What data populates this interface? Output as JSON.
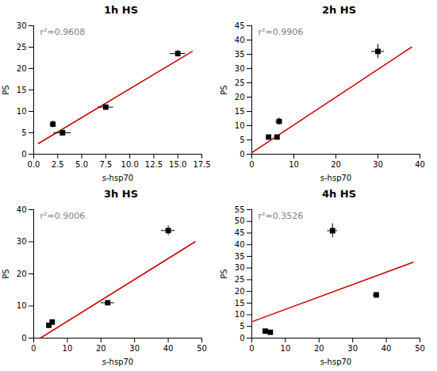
{
  "chart_data": [
    {
      "type": "scatter",
      "title": "1h HS",
      "xlabel": "s-hsp70",
      "ylabel": "PS",
      "xlim": [
        0,
        17.5
      ],
      "ylim": [
        0,
        30
      ],
      "xticks": [
        {
          "value": 0,
          "label": "0.0"
        },
        2.5,
        {
          "value": 5,
          "label": "5.0"
        },
        7.5,
        {
          "value": 10,
          "label": "10.0"
        },
        12.5,
        {
          "value": 15,
          "label": "15.0"
        },
        17.5
      ],
      "yticks": [
        0,
        5,
        10,
        15,
        20,
        25,
        30
      ],
      "series": [
        {
          "type": "line",
          "color": "#cc0000",
          "x": [
            0.5,
            16.5
          ],
          "values": [
            2.5,
            24.0
          ]
        },
        {
          "type": "scatter",
          "color": "black",
          "marker": "square",
          "x": [
            2.0,
            3.0,
            7.5,
            15.0
          ],
          "values": [
            7.0,
            5.0,
            11.0,
            23.5
          ],
          "xerr": [
            0.3,
            0.9,
            0.8,
            0.8
          ],
          "yerr": [
            0.8,
            0.3,
            0.5,
            0.8
          ]
        }
      ],
      "annotations": [
        {
          "text": "r²=0.9608",
          "color": "#808080"
        }
      ]
    },
    {
      "type": "scatter",
      "title": "2h HS",
      "xlabel": "s-hsp70",
      "ylabel": "PS",
      "xlim": [
        0,
        40
      ],
      "ylim": [
        0,
        45
      ],
      "xticks": [
        0,
        10,
        20,
        30,
        40
      ],
      "yticks": [
        0,
        5,
        10,
        15,
        20,
        25,
        30,
        35,
        40,
        45
      ],
      "series": [
        {
          "type": "line",
          "color": "#cc0000",
          "x": [
            0,
            38
          ],
          "values": [
            0.5,
            37.5
          ]
        },
        {
          "type": "scatter",
          "color": "black",
          "marker": "square",
          "x": [
            4.0,
            6.0,
            6.5,
            30.0
          ],
          "values": [
            6.0,
            6.0,
            11.5,
            36.0
          ],
          "xerr": [
            0.5,
            0.6,
            0.8,
            1.5
          ],
          "yerr": [
            0.4,
            0.4,
            1.2,
            2.5
          ]
        }
      ],
      "annotations": [
        {
          "text": "r²=0.9906",
          "color": "#808080"
        }
      ]
    },
    {
      "type": "scatter",
      "title": "3h HS",
      "xlabel": "s-hsp70",
      "ylabel": "PS",
      "xlim": [
        0,
        50
      ],
      "ylim": [
        0,
        40
      ],
      "xticks": [
        0,
        10,
        20,
        30,
        40,
        50
      ],
      "yticks": [
        0,
        10,
        20,
        30,
        40
      ],
      "series": [
        {
          "type": "line",
          "color": "#cc0000",
          "x": [
            2.0,
            48.0
          ],
          "values": [
            0.0,
            30.0
          ]
        },
        {
          "type": "scatter",
          "color": "black",
          "marker": "square",
          "x": [
            4.5,
            5.5,
            22.0,
            40.0
          ],
          "values": [
            4.0,
            5.0,
            11.0,
            33.5
          ],
          "xerr": [
            0.4,
            0.5,
            2.0,
            2.0
          ],
          "yerr": [
            0.4,
            0.4,
            0.5,
            1.5
          ]
        }
      ],
      "annotations": [
        {
          "text": "r²=0.9006",
          "color": "#808080"
        }
      ]
    },
    {
      "type": "scatter",
      "title": "4h HS",
      "xlabel": "s-hsp70",
      "ylabel": "PS",
      "xlim": [
        0,
        50
      ],
      "ylim": [
        0,
        55
      ],
      "xticks": [
        0,
        10,
        20,
        30,
        40,
        50
      ],
      "yticks": [
        0,
        5,
        10,
        15,
        20,
        25,
        30,
        35,
        40,
        45,
        50,
        55
      ],
      "series": [
        {
          "type": "line",
          "color": "#cc0000",
          "x": [
            0,
            48
          ],
          "values": [
            7.0,
            32.5
          ]
        },
        {
          "type": "scatter",
          "color": "black",
          "marker": "square",
          "x": [
            4.0,
            5.5,
            24.0,
            37.0
          ],
          "values": [
            3.0,
            2.5,
            46.0,
            18.5
          ],
          "xerr": [
            0.5,
            0.6,
            1.5,
            1.0
          ],
          "yerr": [
            0.5,
            0.3,
            3.0,
            0.5
          ]
        }
      ],
      "annotations": [
        {
          "text": "r²=0.3526",
          "color": "#808080"
        }
      ]
    }
  ]
}
